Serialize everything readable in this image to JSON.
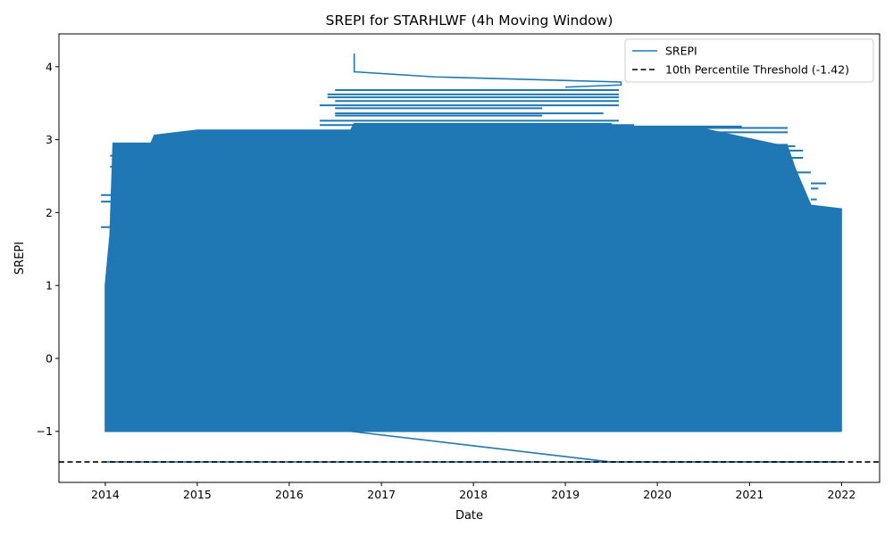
{
  "chart_data": {
    "type": "line",
    "title": "SREPI for STARHLWF (4h Moving Window)",
    "xlabel": "Date",
    "ylabel": "SREPI",
    "x_axis": {
      "kind": "date",
      "range": [
        "2013-07-01",
        "2022-06-01"
      ],
      "ticks": [
        "2014",
        "2015",
        "2016",
        "2017",
        "2018",
        "2019",
        "2020",
        "2021",
        "2022"
      ]
    },
    "y_axis": {
      "range": [
        -1.7,
        4.45
      ],
      "ticks": [
        -1,
        0,
        1,
        2,
        3,
        4
      ],
      "tick_labels": [
        "−1",
        "0",
        "1",
        "2",
        "3",
        "4"
      ]
    },
    "grid": false,
    "legend": {
      "placement": "top-right",
      "entries": [
        "SREPI",
        "10th Percentile Threshold (-1.42)"
      ]
    },
    "series": [
      {
        "name": "SREPI",
        "color": "#1f77b4",
        "style": "solid",
        "dense_band": {
          "description_x_start": "2014-01-01",
          "description_x_end": "2022-01-01",
          "y_min": -1.0,
          "envelope": [
            {
              "x": "2014-01-01",
              "y": 1.0
            },
            {
              "x": "2014-01-20",
              "y": 1.7
            },
            {
              "x": "2014-02-01",
              "y": 2.95
            },
            {
              "x": "2014-07-01",
              "y": 2.95
            },
            {
              "x": "2014-07-15",
              "y": 3.06
            },
            {
              "x": "2015-01-01",
              "y": 3.13
            },
            {
              "x": "2016-09-01",
              "y": 3.13
            },
            {
              "x": "2016-09-15",
              "y": 3.22
            },
            {
              "x": "2019-07-01",
              "y": 3.22
            },
            {
              "x": "2019-07-15",
              "y": 3.15
            },
            {
              "x": "2020-07-01",
              "y": 3.15
            },
            {
              "x": "2021-06-01",
              "y": 2.9
            },
            {
              "x": "2021-07-01",
              "y": 2.6
            },
            {
              "x": "2021-09-01",
              "y": 2.1
            },
            {
              "x": "2021-12-31",
              "y": 2.05
            },
            {
              "x": "2021-12-31",
              "y": -1.0
            }
          ]
        },
        "outline_points": [
          {
            "x": "2016-09-15",
            "y": 4.18
          },
          {
            "x": "2016-09-15",
            "y": 3.93
          },
          {
            "x": "2017-08-01",
            "y": 3.86
          },
          {
            "x": "2019-08-10",
            "y": 3.79
          },
          {
            "x": "2019-08-10",
            "y": 3.75
          },
          {
            "x": "2019-01-01",
            "y": 3.72
          },
          {
            "x": "2016-09-01",
            "y": -1.0
          },
          {
            "x": "2019-07-01",
            "y": -1.42
          },
          {
            "x": "2021-12-31",
            "y": -1.42
          }
        ],
        "horizontal_segments": [
          {
            "x1": "2016-07-01",
            "x2": "2019-08-01",
            "y": 3.68
          },
          {
            "x1": "2016-06-01",
            "x2": "2019-08-01",
            "y": 3.62
          },
          {
            "x1": "2016-06-01",
            "x2": "2019-08-01",
            "y": 3.58
          },
          {
            "x1": "2016-07-01",
            "x2": "2019-08-01",
            "y": 3.53
          },
          {
            "x1": "2016-05-01",
            "x2": "2019-08-01",
            "y": 3.47
          },
          {
            "x1": "2016-07-01",
            "x2": "2018-10-01",
            "y": 3.43
          },
          {
            "x1": "2016-07-01",
            "x2": "2019-06-01",
            "y": 3.36
          },
          {
            "x1": "2016-07-01",
            "x2": "2018-10-01",
            "y": 3.33
          },
          {
            "x1": "2016-05-01",
            "x2": "2019-08-01",
            "y": 3.26
          },
          {
            "x1": "2016-05-01",
            "x2": "2019-10-01",
            "y": 3.2
          },
          {
            "x1": "2019-01-01",
            "x2": "2020-12-01",
            "y": 3.18
          },
          {
            "x1": "2019-03-01",
            "x2": "2021-06-01",
            "y": 3.16
          },
          {
            "x1": "2019-03-01",
            "x2": "2021-06-01",
            "y": 3.1
          },
          {
            "x1": "2019-01-01",
            "x2": "2019-09-01",
            "y": 3.05
          },
          {
            "x1": "2019-05-01",
            "x2": "2019-11-01",
            "y": 3.03
          },
          {
            "x1": "2019-06-01",
            "x2": "2021-06-01",
            "y": 2.93
          },
          {
            "x1": "2019-06-01",
            "x2": "2021-07-01",
            "y": 2.91
          },
          {
            "x1": "2018-08-01",
            "x2": "2019-07-01",
            "y": 2.88
          },
          {
            "x1": "2014-07-01",
            "x2": "2015-04-01",
            "y": 2.82
          },
          {
            "x1": "2014-01-20",
            "x2": "2014-06-01",
            "y": 2.78
          },
          {
            "x1": "2021-01-01",
            "x2": "2021-08-01",
            "y": 2.85
          },
          {
            "x1": "2021-01-01",
            "x2": "2021-08-01",
            "y": 2.75
          },
          {
            "x1": "2014-01-20",
            "x2": "2014-05-01",
            "y": 2.63
          },
          {
            "x1": "2021-07-01",
            "x2": "2021-09-01",
            "y": 2.55
          },
          {
            "x1": "2014-02-01",
            "x2": "2014-04-01",
            "y": 2.48
          },
          {
            "x1": "2014-02-01",
            "x2": "2014-03-20",
            "y": 2.4
          },
          {
            "x1": "2021-09-01",
            "x2": "2021-11-01",
            "y": 2.4
          },
          {
            "x1": "2021-09-01",
            "x2": "2021-10-01",
            "y": 2.33
          },
          {
            "x1": "2014-02-01",
            "x2": "2014-03-20",
            "y": 2.3
          },
          {
            "x1": "2013-12-15",
            "x2": "2014-02-01",
            "y": 2.24
          },
          {
            "x1": "2021-09-01",
            "x2": "2021-09-25",
            "y": 2.18
          },
          {
            "x1": "2013-12-15",
            "x2": "2014-02-01",
            "y": 2.15
          },
          {
            "x1": "2014-01-20",
            "x2": "2014-03-01",
            "y": 1.97
          },
          {
            "x1": "2014-01-20",
            "x2": "2014-03-01",
            "y": 1.87
          },
          {
            "x1": "2013-12-15",
            "x2": "2014-04-01",
            "y": 1.8
          }
        ]
      },
      {
        "name": "10th Percentile Threshold (-1.42)",
        "color": "#000000",
        "style": "dashed",
        "y": -1.42
      }
    ]
  }
}
